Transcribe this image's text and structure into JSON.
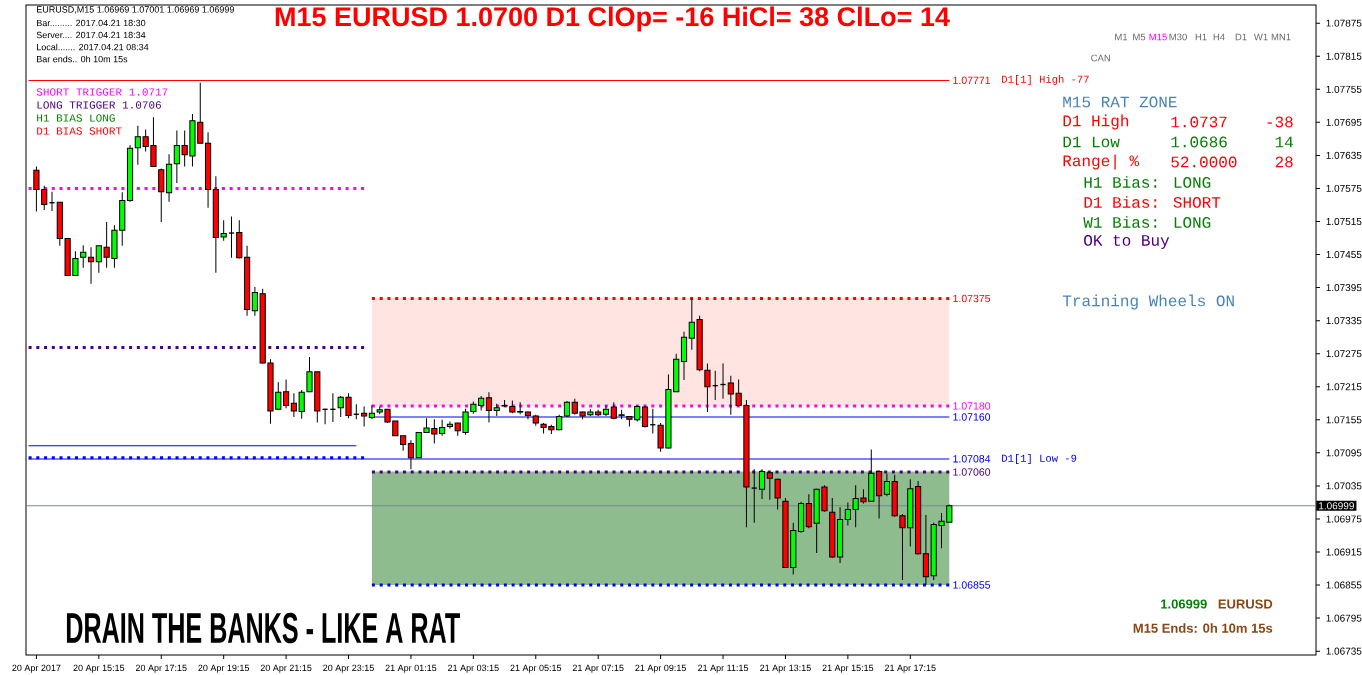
{
  "chart_data": {
    "type": "candlestick",
    "title": "M15 EURUSD 1.0700  D1 ClOp= -16 HiCl= 38 ClLo= 14",
    "x": [
      "2017-04-20T13:15",
      "2017-04-20T13:30",
      "2017-04-20T13:45",
      "2017-04-20T14:00",
      "2017-04-20T14:15",
      "2017-04-20T14:30",
      "2017-04-20T14:45",
      "2017-04-20T15:00",
      "2017-04-20T15:15",
      "2017-04-20T15:30",
      "2017-04-20T15:45",
      "2017-04-20T16:00",
      "2017-04-20T16:15",
      "2017-04-20T16:30",
      "2017-04-20T16:45",
      "2017-04-20T17:00",
      "2017-04-20T17:15",
      "2017-04-20T17:30",
      "2017-04-20T17:45",
      "2017-04-20T18:00",
      "2017-04-20T18:15",
      "2017-04-20T18:30",
      "2017-04-20T18:45",
      "2017-04-20T19:00",
      "2017-04-20T19:15",
      "2017-04-20T19:30",
      "2017-04-20T19:45",
      "2017-04-20T20:00",
      "2017-04-20T20:15",
      "2017-04-20T20:30",
      "2017-04-20T20:45",
      "2017-04-20T21:00",
      "2017-04-20T21:15",
      "2017-04-20T21:30",
      "2017-04-20T21:45",
      "2017-04-20T22:00",
      "2017-04-20T22:15",
      "2017-04-20T22:30",
      "2017-04-20T22:45",
      "2017-04-20T23:00",
      "2017-04-20T23:15",
      "2017-04-20T23:30",
      "2017-04-20T23:45",
      "2017-04-21T00:00",
      "2017-04-21T00:15",
      "2017-04-21T00:30",
      "2017-04-21T00:45",
      "2017-04-21T01:00",
      "2017-04-21T01:15",
      "2017-04-21T01:30",
      "2017-04-21T01:45",
      "2017-04-21T02:00",
      "2017-04-21T02:15",
      "2017-04-21T02:30",
      "2017-04-21T02:45",
      "2017-04-21T03:00",
      "2017-04-21T03:15",
      "2017-04-21T03:30",
      "2017-04-21T03:45",
      "2017-04-21T04:00",
      "2017-04-21T04:15",
      "2017-04-21T04:30",
      "2017-04-21T04:45",
      "2017-04-21T05:00",
      "2017-04-21T05:15",
      "2017-04-21T05:30",
      "2017-04-21T05:45",
      "2017-04-21T06:00",
      "2017-04-21T06:15",
      "2017-04-21T06:30",
      "2017-04-21T06:45",
      "2017-04-21T07:00",
      "2017-04-21T07:15",
      "2017-04-21T07:30",
      "2017-04-21T07:45",
      "2017-04-21T08:00",
      "2017-04-21T08:15",
      "2017-04-21T08:30",
      "2017-04-21T08:45",
      "2017-04-21T09:00",
      "2017-04-21T09:15",
      "2017-04-21T09:30",
      "2017-04-21T09:45",
      "2017-04-21T10:00",
      "2017-04-21T10:15",
      "2017-04-21T10:30",
      "2017-04-21T10:45",
      "2017-04-21T11:00",
      "2017-04-21T11:15",
      "2017-04-21T11:30",
      "2017-04-21T11:45",
      "2017-04-21T12:00",
      "2017-04-21T12:15",
      "2017-04-21T12:30",
      "2017-04-21T12:45",
      "2017-04-21T13:00",
      "2017-04-21T13:15",
      "2017-04-21T13:30",
      "2017-04-21T13:45",
      "2017-04-21T14:00",
      "2017-04-21T14:15",
      "2017-04-21T14:30",
      "2017-04-21T14:45",
      "2017-04-21T15:00",
      "2017-04-21T15:15",
      "2017-04-21T15:30",
      "2017-04-21T15:45",
      "2017-04-21T16:00",
      "2017-04-21T16:15",
      "2017-04-21T16:30",
      "2017-04-21T16:45",
      "2017-04-21T17:00",
      "2017-04-21T17:15",
      "2017-04-21T17:30",
      "2017-04-21T17:45",
      "2017-04-21T18:00",
      "2017-04-21T18:15",
      "2017-04-21T18:30"
    ],
    "ohlc": [
      [
        1.07608,
        1.07615,
        1.07533,
        1.07573
      ],
      [
        1.07573,
        1.0758,
        1.07536,
        1.07546
      ],
      [
        1.07549,
        1.07569,
        1.07534,
        1.07549
      ],
      [
        1.0755,
        1.0755,
        1.07471,
        1.07484
      ],
      [
        1.07484,
        1.07484,
        1.07417,
        1.07417
      ],
      [
        1.07417,
        1.07461,
        1.07417,
        1.07448
      ],
      [
        1.0745,
        1.07472,
        1.07431,
        1.07459
      ],
      [
        1.0745,
        1.07468,
        1.07402,
        1.07442
      ],
      [
        1.07442,
        1.07471,
        1.07422,
        1.07471
      ],
      [
        1.07468,
        1.07514,
        1.07431,
        1.0745
      ],
      [
        1.07448,
        1.07508,
        1.07431,
        1.07499
      ],
      [
        1.07499,
        1.07568,
        1.07471,
        1.07553
      ],
      [
        1.07553,
        1.07654,
        1.07551,
        1.07648
      ],
      [
        1.07649,
        1.07689,
        1.07618,
        1.07669
      ],
      [
        1.07669,
        1.07682,
        1.07642,
        1.07651
      ],
      [
        1.07653,
        1.07704,
        1.07615,
        1.07615
      ],
      [
        1.07609,
        1.07611,
        1.07514,
        1.07569
      ],
      [
        1.07567,
        1.07637,
        1.07551,
        1.07619
      ],
      [
        1.0762,
        1.0768,
        1.07585,
        1.07653
      ],
      [
        1.07653,
        1.0768,
        1.07615,
        1.07636
      ],
      [
        1.07634,
        1.0771,
        1.07615,
        1.07698
      ],
      [
        1.07695,
        1.07767,
        1.07657,
        1.07657
      ],
      [
        1.07657,
        1.07677,
        1.0754,
        1.07573
      ],
      [
        1.07573,
        1.07597,
        1.07422,
        1.07486
      ],
      [
        1.07487,
        1.07517,
        1.0748,
        1.07493
      ],
      [
        1.07494,
        1.07524,
        1.07449,
        1.07494
      ],
      [
        1.07495,
        1.07517,
        1.07448,
        1.07449
      ],
      [
        1.0745,
        1.07471,
        1.07344,
        1.07355
      ],
      [
        1.07353,
        1.07396,
        1.07344,
        1.07386
      ],
      [
        1.07384,
        1.07393,
        1.07257,
        1.07258
      ],
      [
        1.07258,
        1.07265,
        1.07148,
        1.07171
      ],
      [
        1.07174,
        1.07223,
        1.07173,
        1.07205
      ],
      [
        1.07206,
        1.07228,
        1.07176,
        1.07181
      ],
      [
        1.07185,
        1.07203,
        1.0716,
        1.07171
      ],
      [
        1.0717,
        1.07209,
        1.07157,
        1.07205
      ],
      [
        1.07206,
        1.07269,
        1.07206,
        1.07242
      ],
      [
        1.07242,
        1.07242,
        1.0715,
        1.07171
      ],
      [
        1.07174,
        1.07175,
        1.07147,
        1.07174
      ],
      [
        1.07174,
        1.07203,
        1.07151,
        1.07174
      ],
      [
        1.07177,
        1.07198,
        1.0716,
        1.07196
      ],
      [
        1.07196,
        1.07203,
        1.07158,
        1.07163
      ],
      [
        1.07165,
        1.07183,
        1.07156,
        1.07165
      ],
      [
        1.07167,
        1.07179,
        1.07143,
        1.07162
      ],
      [
        1.07159,
        1.07182,
        1.07156,
        1.07167
      ],
      [
        1.07169,
        1.07179,
        1.07165,
        1.07173
      ],
      [
        1.07174,
        1.07174,
        1.07149,
        1.07151
      ],
      [
        1.07153,
        1.07153,
        1.07126,
        1.07126
      ],
      [
        1.07126,
        1.07126,
        1.07099,
        1.0711
      ],
      [
        1.07112,
        1.07118,
        1.07065,
        1.07086
      ],
      [
        1.07086,
        1.07132,
        1.07086,
        1.07132
      ],
      [
        1.07132,
        1.07158,
        1.07132,
        1.0714
      ],
      [
        1.07139,
        1.07156,
        1.07112,
        1.07129
      ],
      [
        1.0713,
        1.07155,
        1.07126,
        1.07141
      ],
      [
        1.07143,
        1.07152,
        1.07139,
        1.07147
      ],
      [
        1.07149,
        1.07149,
        1.07126,
        1.07135
      ],
      [
        1.07132,
        1.07175,
        1.07128,
        1.07169
      ],
      [
        1.0717,
        1.07188,
        1.07166,
        1.07183
      ],
      [
        1.07181,
        1.07198,
        1.07172,
        1.07194
      ],
      [
        1.07195,
        1.07205,
        1.0715,
        1.07172
      ],
      [
        1.07172,
        1.07184,
        1.07162,
        1.07177
      ],
      [
        1.0718,
        1.07191,
        1.07178,
        1.07181
      ],
      [
        1.07179,
        1.0719,
        1.07167,
        1.07169
      ],
      [
        1.07169,
        1.07187,
        1.07165,
        1.0717
      ],
      [
        1.07169,
        1.0717,
        1.07156,
        1.07163
      ],
      [
        1.07162,
        1.07164,
        1.07144,
        1.07149
      ],
      [
        1.07147,
        1.07149,
        1.0713,
        1.07141
      ],
      [
        1.07143,
        1.07146,
        1.07129,
        1.07137
      ],
      [
        1.07137,
        1.07164,
        1.07136,
        1.07161
      ],
      [
        1.07162,
        1.07189,
        1.0716,
        1.07187
      ],
      [
        1.07187,
        1.07193,
        1.07164,
        1.07167
      ],
      [
        1.07169,
        1.0717,
        1.07156,
        1.07162
      ],
      [
        1.07164,
        1.07174,
        1.07162,
        1.07169
      ],
      [
        1.07169,
        1.07173,
        1.07162,
        1.07164
      ],
      [
        1.07165,
        1.07181,
        1.07162,
        1.07174
      ],
      [
        1.07178,
        1.07187,
        1.07156,
        1.07158
      ],
      [
        1.07163,
        1.07173,
        1.07156,
        1.07164
      ],
      [
        1.07161,
        1.07162,
        1.07143,
        1.07156
      ],
      [
        1.07155,
        1.07181,
        1.07152,
        1.07179
      ],
      [
        1.07178,
        1.07181,
        1.07141,
        1.07143
      ],
      [
        1.07146,
        1.07175,
        1.0713,
        1.07146
      ],
      [
        1.07145,
        1.07149,
        1.07097,
        1.07104
      ],
      [
        1.07104,
        1.07237,
        1.07103,
        1.0721
      ],
      [
        1.07206,
        1.07275,
        1.07206,
        1.07265
      ],
      [
        1.07261,
        1.07315,
        1.07227,
        1.07305
      ],
      [
        1.07303,
        1.07375,
        1.07282,
        1.07332
      ],
      [
        1.07337,
        1.07344,
        1.07243,
        1.07246
      ],
      [
        1.07245,
        1.07257,
        1.07169,
        1.07215
      ],
      [
        1.07217,
        1.07244,
        1.07191,
        1.07217
      ],
      [
        1.07219,
        1.07257,
        1.07193,
        1.07219
      ],
      [
        1.07222,
        1.07235,
        1.07164,
        1.07202
      ],
      [
        1.07203,
        1.07228,
        1.07179,
        1.07181
      ],
      [
        1.07181,
        1.07191,
        1.0696,
        1.07033
      ],
      [
        1.07031,
        1.07065,
        1.06968,
        1.07031
      ],
      [
        1.07029,
        1.07065,
        1.07011,
        1.07061
      ],
      [
        1.07059,
        1.07061,
        1.0701,
        1.07049
      ],
      [
        1.07047,
        1.07048,
        1.06992,
        1.07013
      ],
      [
        1.07007,
        1.07013,
        1.06887,
        1.06887
      ],
      [
        1.06887,
        1.06968,
        1.06874,
        1.06954
      ],
      [
        1.06952,
        1.07006,
        1.0695,
        1.07003
      ],
      [
        1.07003,
        1.0702,
        1.06958,
        1.06961
      ],
      [
        1.06967,
        1.0703,
        1.06913,
        1.07029
      ],
      [
        1.07033,
        1.07036,
        1.06988,
        1.0699
      ],
      [
        1.06987,
        1.07013,
        1.06904,
        1.06906
      ],
      [
        1.06906,
        1.06996,
        1.06895,
        1.06974
      ],
      [
        1.06974,
        1.07005,
        1.06963,
        1.06992
      ],
      [
        1.06992,
        1.07036,
        1.0696,
        1.07012
      ],
      [
        1.07013,
        1.07029,
        1.07003,
        1.07006
      ],
      [
        1.07007,
        1.07101,
        1.07006,
        1.07058
      ],
      [
        1.07061,
        1.07063,
        1.06976,
        1.07017
      ],
      [
        1.0702,
        1.07057,
        1.07016,
        1.07043
      ],
      [
        1.07043,
        1.07055,
        1.06979,
        1.06981
      ],
      [
        1.06981,
        1.06984,
        1.06864,
        1.06959
      ],
      [
        1.06959,
        1.07047,
        1.06925,
        1.0703
      ],
      [
        1.07034,
        1.07044,
        1.0691,
        1.06912
      ],
      [
        1.06912,
        1.06982,
        1.06855,
        1.0687
      ],
      [
        1.06872,
        1.06968,
        1.06864,
        1.06965
      ],
      [
        1.06963,
        1.06986,
        1.06922,
        1.06971
      ],
      [
        1.06969,
        1.07001,
        1.06969,
        1.06999
      ]
    ],
    "colors": [
      "#ff0000",
      "#ff0000",
      "#000000",
      "#ff0000",
      "#ff0000",
      "#00ff00",
      "#00ff00",
      "#ff0000",
      "#00ff00",
      "#ff0000",
      "#00ff00",
      "#00ff00",
      "#00ff00",
      "#00ff00",
      "#ff0000",
      "#ff0000",
      "#ff0000",
      "#00ff00",
      "#00ff00",
      "#ff0000",
      "#00ff00",
      "#ff0000",
      "#ff0000",
      "#ff0000",
      "#00ff00",
      "#000000",
      "#ff0000",
      "#ff0000",
      "#00ff00",
      "#ff0000",
      "#ff0000",
      "#00ff00",
      "#ff0000",
      "#ff0000",
      "#00ff00",
      "#00ff00",
      "#ff0000",
      "#000000",
      "#000000",
      "#00ff00",
      "#ff0000",
      "#000000",
      "#ff0000",
      "#00ff00",
      "#00ff00",
      "#ff0000",
      "#ff0000",
      "#ff0000",
      "#ff0000",
      "#00ff00",
      "#00ff00",
      "#ff0000",
      "#00ff00",
      "#00ff00",
      "#ff0000",
      "#00ff00",
      "#00ff00",
      "#00ff00",
      "#ff0000",
      "#00ff00",
      "#00ff00",
      "#ff0000",
      "#00ff00",
      "#ff0000",
      "#ff0000",
      "#ff0000",
      "#ff0000",
      "#00ff00",
      "#00ff00",
      "#ff0000",
      "#ff0000",
      "#00ff00",
      "#ff0000",
      "#00ff00",
      "#ff0000",
      "#00ff00",
      "#ff0000",
      "#00ff00",
      "#ff0000",
      "#000000",
      "#ff0000",
      "#00ff00",
      "#00ff00",
      "#00ff00",
      "#00ff00",
      "#ff0000",
      "#ff0000",
      "#000000",
      "#000000",
      "#ff0000",
      "#ff0000",
      "#ff0000",
      "#000000",
      "#00ff00",
      "#ff0000",
      "#ff0000",
      "#ff0000",
      "#00ff00",
      "#00ff00",
      "#ff0000",
      "#00ff00",
      "#ff0000",
      "#ff0000",
      "#00ff00",
      "#00ff00",
      "#00ff00",
      "#ff0000",
      "#00ff00",
      "#ff0000",
      "#00ff00",
      "#ff0000",
      "#ff0000",
      "#00ff00",
      "#ff0000",
      "#ff0000",
      "#00ff00",
      "#00ff00",
      "#00ff00"
    ],
    "series": [
      {
        "type": "line",
        "color": "#ffe4e1",
        "x": [
          "2017-04-21T00:00",
          "2017-04-21T18:30"
        ],
        "values": [
          1.07375,
          1.07375
        ],
        "lower": [
          1.0718,
          1.0718
        ],
        "upper": [
          1.07375,
          1.07375
        ],
        "line_style": "solid"
      },
      {
        "type": "line",
        "color": "#8fbc8f",
        "x": [
          "2017-04-21T00:00",
          "2017-04-21T18:30"
        ],
        "values": [
          1.0706,
          1.0706
        ],
        "lower": [
          1.06855,
          1.06855
        ],
        "upper": [
          1.0706,
          1.0706
        ],
        "line_style": "solid"
      },
      {
        "type": "line",
        "color": "#ff00ff",
        "x": [
          "2017-04-20T13:00",
          "2017-04-20T23:45"
        ],
        "values": [
          1.07575,
          1.07575
        ],
        "line_style": "dotted"
      },
      {
        "type": "line",
        "color": "#4b0082",
        "x": [
          "2017-04-20T13:00",
          "2017-04-20T23:45"
        ],
        "values": [
          1.07286,
          1.07286
        ],
        "line_style": "dotted"
      },
      {
        "type": "line",
        "color": "#0000ff",
        "x": [
          "2017-04-20T13:00",
          "2017-04-20T23:30"
        ],
        "values": [
          1.07108,
          1.07108
        ],
        "line_style": "solid"
      },
      {
        "type": "line",
        "color": "#0000ff",
        "x": [
          "2017-04-20T13:00",
          "2017-04-20T23:45"
        ],
        "values": [
          1.07086,
          1.07086
        ],
        "line_style": "dotted"
      },
      {
        "type": "line",
        "name": "1.07771",
        "color": "#ff0000",
        "x": [
          "2017-04-20T13:00",
          "2017-04-21T18:30"
        ],
        "values": [
          1.07771,
          1.07771
        ],
        "line_style": "solid"
      },
      {
        "type": "line",
        "name": "1.07375",
        "color": "#ff0000",
        "x": [
          "2017-04-21T00:00",
          "2017-04-21T18:30"
        ],
        "values": [
          1.07375,
          1.07375
        ],
        "line_style": "dotted"
      },
      {
        "type": "line",
        "name": "1.07180",
        "color": "#ff00ff",
        "x": [
          "2017-04-21T00:00",
          "2017-04-21T18:30"
        ],
        "values": [
          1.0718,
          1.0718
        ],
        "line_style": "dotted"
      },
      {
        "type": "line",
        "name": "1.07160",
        "color": "#0000ff",
        "x": [
          "2017-04-21T00:00",
          "2017-04-21T18:30"
        ],
        "values": [
          1.0716,
          1.0716
        ],
        "line_style": "solid"
      },
      {
        "type": "line",
        "name": "1.07084",
        "color": "#0000ff",
        "x": [
          "2017-04-20T13:00",
          "2017-04-21T18:30"
        ],
        "values": [
          1.07084,
          1.07084
        ],
        "line_style": "solid"
      },
      {
        "type": "line",
        "name": "1.07060",
        "color": "#4b0082",
        "x": [
          "2017-04-21T00:00",
          "2017-04-21T18:30"
        ],
        "values": [
          1.0706,
          1.0706
        ],
        "line_style": "dotted"
      },
      {
        "type": "line",
        "name": "1.06855",
        "color": "#0000ff",
        "x": [
          "2017-04-21T00:00",
          "2017-04-21T18:30"
        ],
        "values": [
          1.06855,
          1.06855
        ],
        "line_style": "dotted"
      }
    ],
    "ref_lines": [
      {
        "axis": "y",
        "value": 1.06999,
        "label": "1.06999",
        "color": "#778899"
      }
    ],
    "xlim": [
      "2017-04-20T12:55",
      "2017-04-22T06:15"
    ],
    "xticks": [
      {
        "value": "2017-04-20T13:15",
        "label": "20 Apr 2017"
      },
      {
        "value": "2017-04-20T15:15",
        "label": "20 Apr 15:15"
      },
      {
        "value": "2017-04-20T17:15",
        "label": "20 Apr 17:15"
      },
      {
        "value": "2017-04-20T19:15",
        "label": "20 Apr 19:15"
      },
      {
        "value": "2017-04-20T21:15",
        "label": "20 Apr 21:15"
      },
      {
        "value": "2017-04-20T23:15",
        "label": "20 Apr 23:15"
      },
      {
        "value": "2017-04-21T01:15",
        "label": "21 Apr 01:15"
      },
      {
        "value": "2017-04-21T03:15",
        "label": "21 Apr 03:15"
      },
      {
        "value": "2017-04-21T05:15",
        "label": "21 Apr 05:15"
      },
      {
        "value": "2017-04-21T07:15",
        "label": "21 Apr 07:15"
      },
      {
        "value": "2017-04-21T09:15",
        "label": "21 Apr 09:15"
      },
      {
        "value": "2017-04-21T11:15",
        "label": "21 Apr 11:15"
      },
      {
        "value": "2017-04-21T13:15",
        "label": "21 Apr 13:15"
      },
      {
        "value": "2017-04-21T15:15",
        "label": "21 Apr 15:15"
      },
      {
        "value": "2017-04-21T17:15",
        "label": "21 Apr 17:15"
      }
    ],
    "ylim": [
      1.06728,
      1.07908
    ],
    "yticks": [
      1.06735,
      1.06795,
      1.06855,
      1.06915,
      1.06975,
      1.07035,
      1.07095,
      1.07155,
      1.07215,
      1.07275,
      1.07335,
      1.07395,
      1.07455,
      1.07515,
      1.07575,
      1.07635,
      1.07695,
      1.07755,
      1.07815,
      1.07875
    ],
    "annotations": [
      "EURUSD,M15  1.06969 1.07001 1.06969 1.06999",
      "Bar......... 2017.04.21 18:30",
      "Server.... 2017.04.21 18:34",
      "Local....... 2017.04.21 08:34",
      "Bar ends.. 0h 10m 15s",
      "SHORT TRIGGER 1.0717",
      "LONG TRIGGER  1.0706",
      "H1 BIAS LONG",
      "D1 BIAS SHORT",
      "M1",
      "M5",
      "M15",
      "M30",
      "H1",
      "H4",
      "D1",
      "W1",
      "MN1",
      "CAN",
      "D1[1] High  -77",
      "D1[1] Low  -9",
      "M15 RAT ZONE",
      "D1 High",
      "1.0737",
      "-38",
      "D1 Low",
      "1.0686",
      "14",
      "Range| %",
      "52.0000",
      "28",
      "H1 Bias: LONG",
      "D1 Bias: SHORT",
      "W1 Bias: LONG",
      "OK to Buy",
      "Training Wheels ON",
      "DRAIN THE BANKS - LIKE A RAT",
      "1.06999",
      "EURUSD",
      "M15 Ends: 0h 10m 15s"
    ]
  }
}
